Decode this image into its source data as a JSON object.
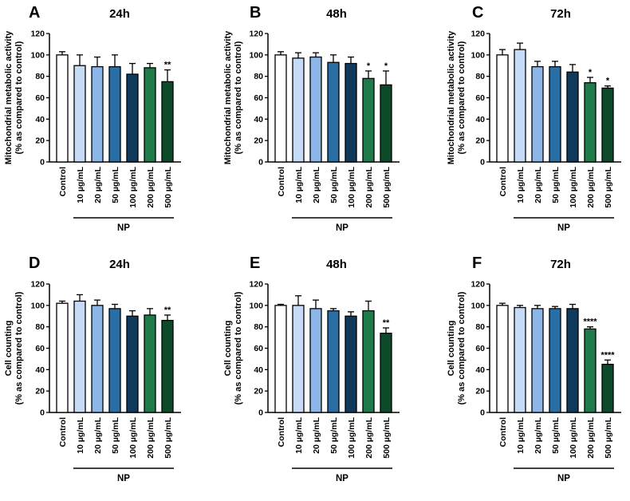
{
  "chart_data": [
    {
      "type": "bar",
      "panel": "A",
      "title": "24h",
      "ylabel": [
        "Mitochondrial metabolic activity",
        "(% as compared to control)"
      ],
      "group_label": "NP",
      "categories": [
        "Control",
        "10 µg/mL",
        "20 µg/mL",
        "50 µg/mL",
        "100 µg/mL",
        "200 µg/mL",
        "500 µg/mL"
      ],
      "values": [
        100,
        90,
        89,
        89,
        82,
        88,
        75
      ],
      "errors": [
        3,
        10,
        9,
        11,
        10,
        4,
        11
      ],
      "significance": [
        "",
        "",
        "",
        "",
        "",
        "",
        "**"
      ],
      "ylim": [
        0,
        120
      ],
      "yticks": [
        0,
        20,
        40,
        60,
        80,
        100,
        120
      ],
      "colors": [
        "#ffffff",
        "#c6dbf5",
        "#8db6e8",
        "#2a6ea6",
        "#0f3a5c",
        "#1f7a4a",
        "#0d4a2a"
      ]
    },
    {
      "type": "bar",
      "panel": "B",
      "title": "48h",
      "ylabel": [
        "Mitochondrial metabolic activity",
        "(% as compared to control)"
      ],
      "group_label": "NP",
      "categories": [
        "Control",
        "10 µg/mL",
        "20 µg/mL",
        "50 µg/mL",
        "100 µg/mL",
        "200 µg/mL",
        "500 µg/mL"
      ],
      "values": [
        100,
        97,
        98,
        93,
        92,
        78,
        72
      ],
      "errors": [
        3,
        5,
        4,
        7,
        6,
        7,
        13
      ],
      "significance": [
        "",
        "",
        "",
        "",
        "",
        "*",
        "*"
      ],
      "ylim": [
        0,
        120
      ],
      "yticks": [
        0,
        20,
        40,
        60,
        80,
        100,
        120
      ],
      "colors": [
        "#ffffff",
        "#c6dbf5",
        "#8db6e8",
        "#2a6ea6",
        "#0f3a5c",
        "#1f7a4a",
        "#0d4a2a"
      ]
    },
    {
      "type": "bar",
      "panel": "C",
      "title": "72h",
      "ylabel": [
        "Mitochondrial metabolic activity",
        "(% as compared to control)"
      ],
      "group_label": "NP",
      "categories": [
        "Control",
        "10 µg/mL",
        "20 µg/mL",
        "50 µg/mL",
        "100 µg/mL",
        "200 µg/mL",
        "500 µg/mL"
      ],
      "values": [
        100,
        105,
        89,
        89,
        84,
        74,
        69
      ],
      "errors": [
        5,
        6,
        5,
        5,
        7,
        5,
        2
      ],
      "significance": [
        "",
        "",
        "",
        "",
        "",
        "*",
        "*"
      ],
      "ylim": [
        0,
        120
      ],
      "yticks": [
        0,
        20,
        40,
        60,
        80,
        100,
        120
      ],
      "colors": [
        "#ffffff",
        "#c6dbf5",
        "#8db6e8",
        "#2a6ea6",
        "#0f3a5c",
        "#1f7a4a",
        "#0d4a2a"
      ]
    },
    {
      "type": "bar",
      "panel": "D",
      "title": "24h",
      "ylabel": [
        "Cell counting",
        "(% as compared to control)"
      ],
      "group_label": "NP",
      "categories": [
        "Control",
        "10 µg/mL",
        "20 µg/mL",
        "50 µg/mL",
        "100 µg/mL",
        "200 µg/mL",
        "500 µg/mL"
      ],
      "values": [
        102,
        104,
        100,
        97,
        90,
        91,
        86
      ],
      "errors": [
        2,
        6,
        5,
        4,
        5,
        6,
        5
      ],
      "significance": [
        "",
        "",
        "",
        "",
        "",
        "",
        "**"
      ],
      "ylim": [
        0,
        120
      ],
      "yticks": [
        0,
        20,
        40,
        60,
        80,
        100,
        120
      ],
      "colors": [
        "#ffffff",
        "#c6dbf5",
        "#8db6e8",
        "#2a6ea6",
        "#0f3a5c",
        "#1f7a4a",
        "#0d4a2a"
      ]
    },
    {
      "type": "bar",
      "panel": "E",
      "title": "48h",
      "ylabel": [
        "Cell counting",
        "(% as compared to control)"
      ],
      "group_label": "NP",
      "categories": [
        "Control",
        "10 µg/mL",
        "20 µg/mL",
        "50 µg/mL",
        "100 µg/mL",
        "200 µg/mL",
        "500 µg/mL"
      ],
      "values": [
        100,
        100,
        97,
        95,
        90,
        95,
        74
      ],
      "errors": [
        1,
        9,
        8,
        2,
        4,
        9,
        5
      ],
      "significance": [
        "",
        "",
        "",
        "",
        "",
        "",
        "**"
      ],
      "ylim": [
        0,
        120
      ],
      "yticks": [
        0,
        20,
        40,
        60,
        80,
        100,
        120
      ],
      "colors": [
        "#ffffff",
        "#c6dbf5",
        "#8db6e8",
        "#2a6ea6",
        "#0f3a5c",
        "#1f7a4a",
        "#0d4a2a"
      ]
    },
    {
      "type": "bar",
      "panel": "F",
      "title": "72h",
      "ylabel": [
        "Cell counting",
        "(% as compared to control)"
      ],
      "group_label": "NP",
      "categories": [
        "Control",
        "10 µg/mL",
        "20 µg/mL",
        "50 µg/mL",
        "100 µg/mL",
        "200 µg/mL",
        "500 µg/mL"
      ],
      "values": [
        100,
        98,
        97,
        97,
        97,
        78,
        45
      ],
      "errors": [
        2,
        2,
        3,
        2,
        4,
        2,
        4
      ],
      "significance": [
        "",
        "",
        "",
        "",
        "",
        "****",
        "****"
      ],
      "ylim": [
        0,
        120
      ],
      "yticks": [
        0,
        20,
        40,
        60,
        80,
        100,
        120
      ],
      "colors": [
        "#ffffff",
        "#c6dbf5",
        "#8db6e8",
        "#2a6ea6",
        "#0f3a5c",
        "#1f7a4a",
        "#0d4a2a"
      ]
    }
  ]
}
